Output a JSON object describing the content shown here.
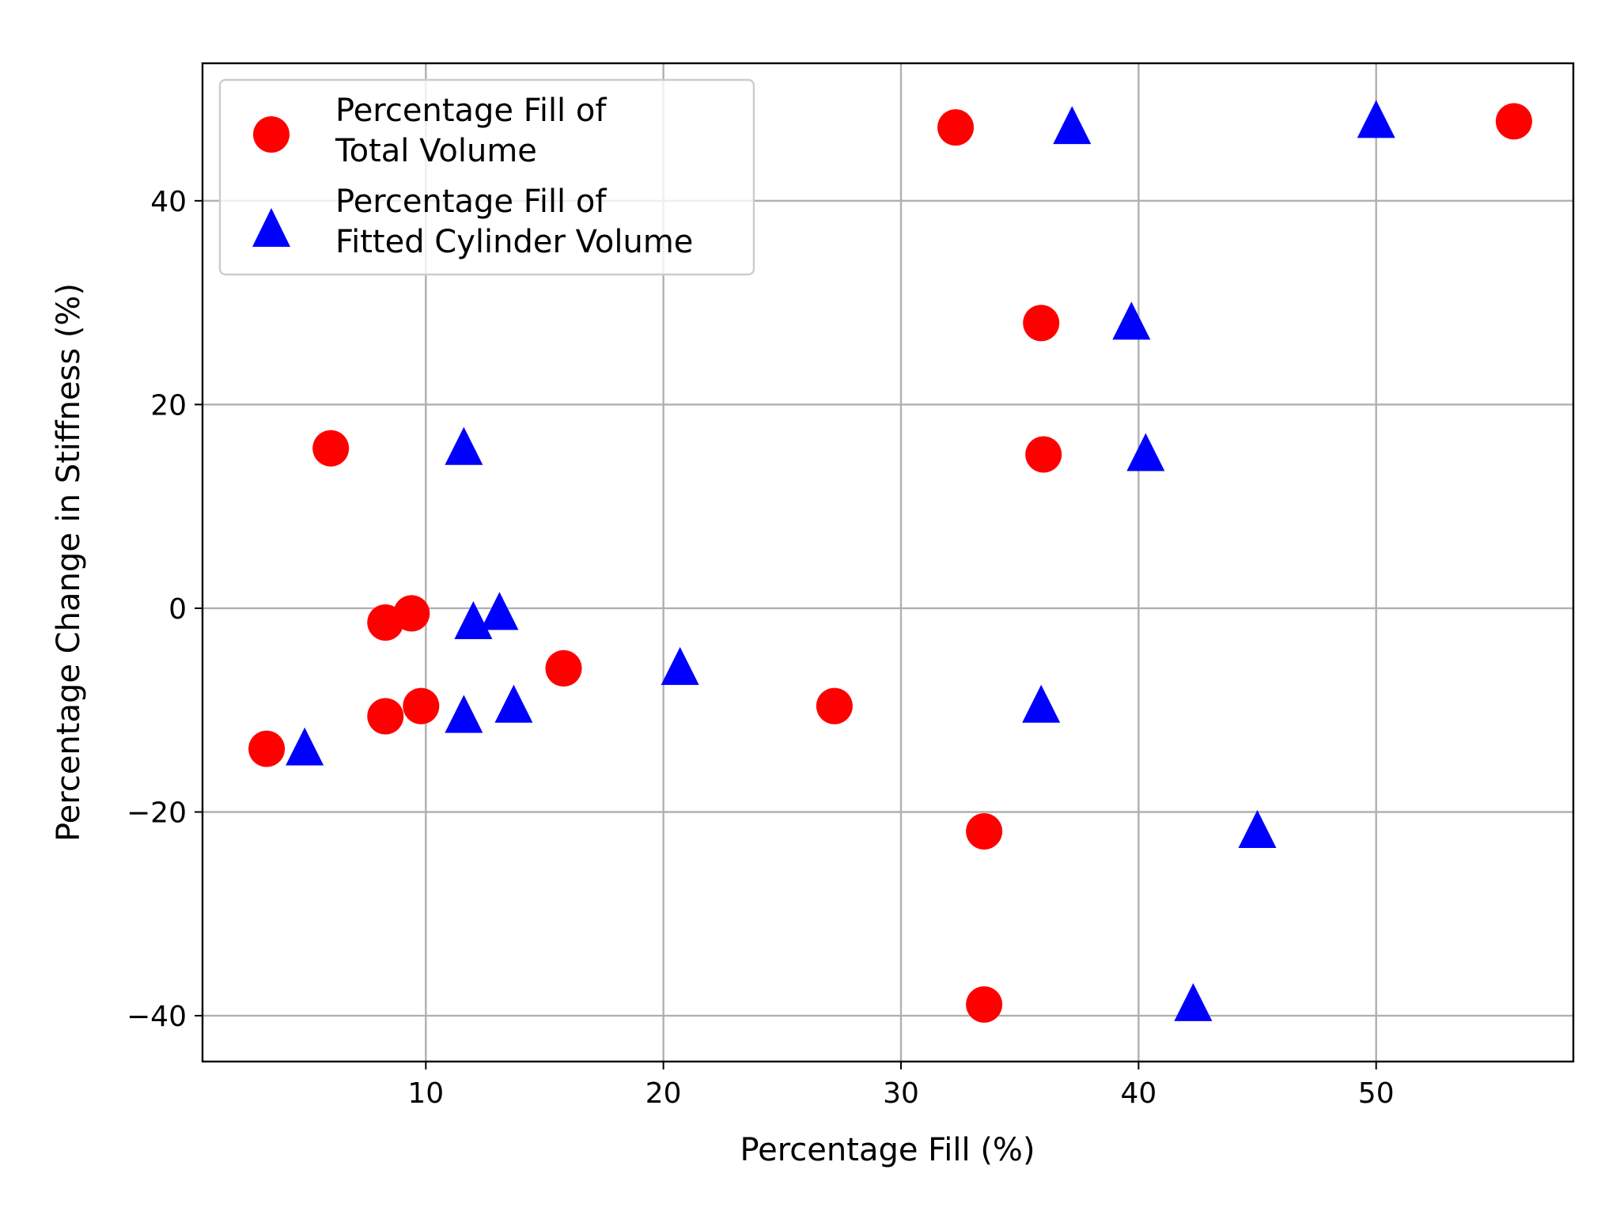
{
  "chart_data": {
    "type": "scatter",
    "title": "",
    "xlabel": "Percentage Fill (%)",
    "ylabel": "Percentage Change in Stiffness (%)",
    "xlim": [
      0.6,
      58.3
    ],
    "ylim": [
      -44.5,
      53.5
    ],
    "xticks": [
      10,
      20,
      30,
      40,
      50
    ],
    "yticks": [
      -40,
      -20,
      0,
      20,
      40
    ],
    "xtick_labels": [
      "10",
      "20",
      "30",
      "40",
      "50"
    ],
    "ytick_labels": [
      "−40",
      "−20",
      "0",
      "20",
      "40"
    ],
    "grid": true,
    "legend": {
      "placement": "top-left",
      "entries": [
        {
          "label_lines": [
            "Percentage Fill of",
            "Total Volume"
          ],
          "marker": "circle",
          "color": "#ff0000"
        },
        {
          "label_lines": [
            "Percentage Fill of",
            "Fitted Cylinder Volume"
          ],
          "marker": "triangle",
          "color": "#0000ff"
        }
      ]
    },
    "series": [
      {
        "name": "Percentage Fill of Total Volume",
        "marker": "circle",
        "color": "#ff0000",
        "points": [
          {
            "x": 3.3,
            "y": -13.8
          },
          {
            "x": 6.0,
            "y": 15.7
          },
          {
            "x": 8.3,
            "y": -1.4
          },
          {
            "x": 8.3,
            "y": -10.6
          },
          {
            "x": 9.4,
            "y": -0.5
          },
          {
            "x": 9.8,
            "y": -9.6
          },
          {
            "x": 15.8,
            "y": -5.9
          },
          {
            "x": 27.2,
            "y": -9.6
          },
          {
            "x": 32.3,
            "y": 47.2
          },
          {
            "x": 33.5,
            "y": -21.9
          },
          {
            "x": 33.5,
            "y": -38.9
          },
          {
            "x": 35.9,
            "y": 28.0
          },
          {
            "x": 36.0,
            "y": 15.1
          },
          {
            "x": 55.8,
            "y": 47.8
          }
        ]
      },
      {
        "name": "Percentage Fill of Fitted Cylinder Volume",
        "marker": "triangle",
        "color": "#0000ff",
        "points": [
          {
            "x": 4.9,
            "y": -13.8
          },
          {
            "x": 11.6,
            "y": 15.7
          },
          {
            "x": 12.0,
            "y": -1.4
          },
          {
            "x": 11.6,
            "y": -10.6
          },
          {
            "x": 13.1,
            "y": -0.5
          },
          {
            "x": 13.7,
            "y": -9.6
          },
          {
            "x": 20.7,
            "y": -5.9
          },
          {
            "x": 35.9,
            "y": -9.6
          },
          {
            "x": 37.2,
            "y": 47.2
          },
          {
            "x": 45.0,
            "y": -21.9
          },
          {
            "x": 42.3,
            "y": -38.9
          },
          {
            "x": 39.7,
            "y": 28.0
          },
          {
            "x": 40.3,
            "y": 15.1
          },
          {
            "x": 50.0,
            "y": 47.8
          }
        ]
      }
    ]
  }
}
